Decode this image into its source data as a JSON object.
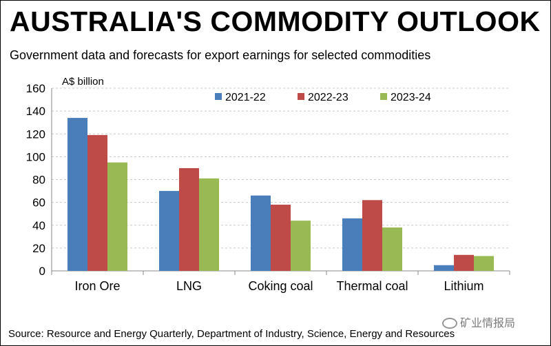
{
  "header": {
    "title": "AUSTRALIA'S COMMODITY OUTLOOK",
    "subtitle": "Government data and forecasts for export earnings for selected commodities"
  },
  "footer": {
    "source": "Source: Resource and Energy Quarterly, Department of Industry, Science, Energy and Resources",
    "watermark": "矿业情报局",
    "watermark_icon": "wechat-icon"
  },
  "chart_data": {
    "type": "bar",
    "title": "AUSTRALIA'S COMMODITY OUTLOOK",
    "ylabel": "A$ billion",
    "xlabel": "",
    "ylim": [
      0,
      160
    ],
    "yticks": [
      0,
      20,
      40,
      60,
      80,
      100,
      120,
      140,
      160
    ],
    "grid": true,
    "legend_position": "top-right",
    "categories": [
      "Iron Ore",
      "LNG",
      "Coking coal",
      "Thermal coal",
      "Lithium"
    ],
    "series": [
      {
        "name": "2021-22",
        "color": "#4a7ebb",
        "values": [
          134,
          70,
          66,
          46,
          5
        ]
      },
      {
        "name": "2022-23",
        "color": "#be4b48",
        "values": [
          119,
          90,
          58,
          62,
          14
        ]
      },
      {
        "name": "2023-24",
        "color": "#98b954",
        "values": [
          95,
          81,
          44,
          38,
          13
        ]
      }
    ]
  }
}
